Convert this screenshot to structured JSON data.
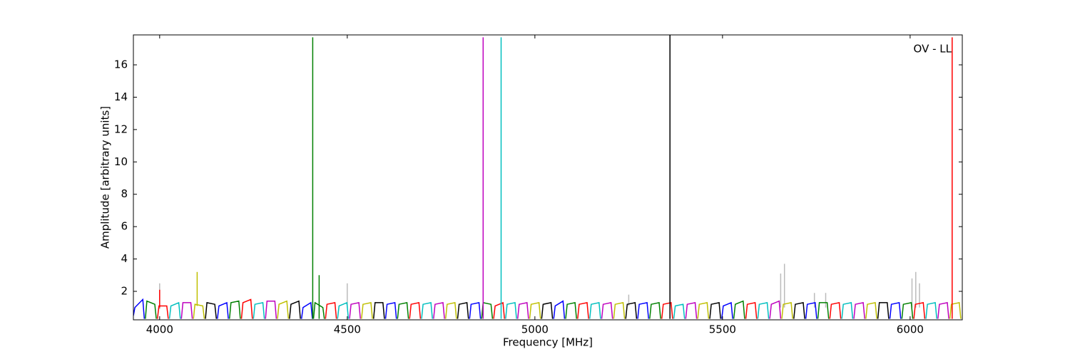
{
  "chart_data": {
    "type": "line",
    "xlabel": "Frequency [MHz]",
    "ylabel": "Amplitude [arbitrary units]",
    "annotation": "OV - LL",
    "xlim": [
      3930,
      6139
    ],
    "ylim": [
      0.24,
      17.85
    ],
    "xticks": [
      4000,
      4500,
      5000,
      5500,
      6000
    ],
    "yticks": [
      2,
      4,
      6,
      8,
      10,
      12,
      14,
      16
    ],
    "series": [
      {
        "color": "#bbbbbb",
        "x": [
          4000,
          4000,
          null,
          4500,
          4500,
          null,
          5250,
          5250,
          null,
          5655,
          5655,
          null,
          5665,
          5665,
          null,
          5745,
          5745,
          null,
          5775,
          5775,
          null,
          6005,
          6005,
          null,
          6015,
          6015,
          null,
          6025,
          6025
        ],
        "values": [
          0.9,
          2.5,
          null,
          1.0,
          2.5,
          null,
          1.1,
          1.8,
          null,
          1.0,
          3.1,
          null,
          1.0,
          3.7,
          null,
          1.0,
          1.9,
          null,
          1.0,
          1.9,
          null,
          1.0,
          2.8,
          null,
          1.0,
          3.2,
          null,
          1.0,
          2.5
        ]
      },
      {
        "color": "#0000ff",
        "x": [
          3930,
          3934,
          3955,
          3959,
          null,
          4154,
          4158,
          4179,
          4183,
          null,
          4378,
          4382,
          4403,
          4407,
          null,
          4602,
          4606,
          4627,
          4631,
          null,
          4826,
          4830,
          4851,
          4855,
          null,
          5050,
          5054,
          5075,
          5079,
          null,
          5274,
          5278,
          5299,
          5303,
          null,
          5498,
          5502,
          5523,
          5527,
          null,
          5722,
          5726,
          5747,
          5751,
          null,
          5946,
          5950,
          5971,
          5975
        ],
        "values": [
          0.5,
          1.0,
          1.5,
          0.3,
          null,
          0.3,
          1.1,
          1.3,
          0.3,
          null,
          0.3,
          1.0,
          1.3,
          0.3,
          null,
          0.3,
          1.2,
          1.3,
          0.3,
          null,
          0.3,
          1.2,
          1.3,
          0.3,
          null,
          0.3,
          1.1,
          1.4,
          0.3,
          null,
          0.3,
          1.2,
          1.3,
          0.3,
          null,
          0.3,
          1.1,
          1.3,
          0.3,
          null,
          0.3,
          1.2,
          1.3,
          0.3,
          null,
          0.3,
          1.2,
          1.3,
          0.3
        ]
      },
      {
        "color": "#008000",
        "x": [
          3962,
          3966,
          3987,
          3991,
          null,
          4186,
          4190,
          4211,
          4215,
          null,
          4410,
          4414,
          4435,
          4439,
          null,
          4634,
          4638,
          4659,
          4663,
          null,
          4858,
          4862,
          4883,
          4887,
          null,
          5082,
          5086,
          5107,
          5111,
          null,
          5306,
          5310,
          5331,
          5335,
          null,
          5530,
          5534,
          5555,
          5559,
          null,
          5754,
          5758,
          5779,
          5783,
          null,
          5978,
          5982,
          6003,
          6007
        ],
        "values": [
          0.3,
          1.4,
          1.2,
          0.3,
          null,
          0.3,
          1.3,
          1.4,
          0.3,
          null,
          0.3,
          1.3,
          1.0,
          0.3,
          null,
          0.3,
          1.2,
          1.3,
          0.3,
          null,
          0.3,
          1.3,
          1.2,
          0.3,
          null,
          0.3,
          1.2,
          1.3,
          0.3,
          null,
          0.3,
          1.2,
          1.3,
          0.3,
          null,
          0.3,
          1.2,
          1.4,
          0.3,
          null,
          0.3,
          1.3,
          1.3,
          0.3,
          null,
          0.3,
          1.2,
          1.3,
          0.3
        ]
      },
      {
        "color": "#ff0000",
        "x": [
          3994,
          3998,
          4019,
          4023,
          null,
          4218,
          4222,
          4243,
          4247,
          null,
          4442,
          4446,
          4467,
          4471,
          null,
          4666,
          4670,
          4691,
          4695,
          null,
          4890,
          4894,
          4915,
          4919,
          null,
          5114,
          5118,
          5139,
          5143,
          null,
          5338,
          5342,
          5363,
          5367,
          null,
          5562,
          5566,
          5587,
          5591,
          null,
          5786,
          5790,
          5811,
          5815,
          null,
          6010,
          6014,
          6035,
          6039
        ],
        "values": [
          0.3,
          1.1,
          1.1,
          0.3,
          null,
          0.3,
          1.3,
          1.5,
          0.3,
          null,
          0.3,
          1.2,
          1.3,
          0.3,
          null,
          0.3,
          1.2,
          1.3,
          0.3,
          null,
          0.3,
          1.1,
          1.3,
          0.3,
          null,
          0.3,
          1.2,
          1.3,
          0.3,
          null,
          0.3,
          1.2,
          1.3,
          0.3,
          null,
          0.3,
          1.2,
          1.3,
          0.3,
          null,
          0.3,
          1.2,
          1.3,
          0.3,
          null,
          0.3,
          1.2,
          1.3,
          0.3
        ]
      },
      {
        "color": "#00bfbf",
        "x": [
          4026,
          4030,
          4051,
          4055,
          null,
          4250,
          4254,
          4275,
          4279,
          null,
          4474,
          4478,
          4499,
          4503,
          null,
          4698,
          4702,
          4723,
          4727,
          null,
          4922,
          4926,
          4947,
          4951,
          null,
          5146,
          5150,
          5171,
          5175,
          null,
          5370,
          5374,
          5395,
          5399,
          null,
          5594,
          5598,
          5619,
          5623,
          null,
          5818,
          5822,
          5843,
          5847,
          null,
          6042,
          6046,
          6067,
          6071
        ],
        "values": [
          0.3,
          1.1,
          1.3,
          0.3,
          null,
          0.3,
          1.2,
          1.3,
          0.3,
          null,
          0.3,
          1.1,
          1.3,
          0.3,
          null,
          0.3,
          1.2,
          1.3,
          0.3,
          null,
          0.3,
          1.2,
          1.3,
          0.3,
          null,
          0.3,
          1.2,
          1.3,
          0.3,
          null,
          0.3,
          1.1,
          1.2,
          0.3,
          null,
          0.3,
          1.2,
          1.3,
          0.3,
          null,
          0.3,
          1.2,
          1.3,
          0.3,
          null,
          0.3,
          1.2,
          1.3,
          0.3
        ]
      },
      {
        "color": "#bf00bf",
        "x": [
          4058,
          4062,
          4083,
          4087,
          null,
          4282,
          4286,
          4307,
          4311,
          null,
          4506,
          4510,
          4531,
          4535,
          null,
          4730,
          4734,
          4755,
          4759,
          null,
          4954,
          4958,
          4979,
          4983,
          null,
          5178,
          5182,
          5203,
          5207,
          null,
          5402,
          5406,
          5427,
          5431,
          null,
          5626,
          5630,
          5651,
          5655,
          null,
          5850,
          5854,
          5875,
          5879,
          null,
          6074,
          6078,
          6099,
          6103
        ],
        "values": [
          0.3,
          1.3,
          1.3,
          0.3,
          null,
          0.3,
          1.4,
          1.4,
          0.3,
          null,
          0.3,
          1.2,
          1.3,
          0.3,
          null,
          0.3,
          1.2,
          1.3,
          0.3,
          null,
          0.3,
          1.2,
          1.3,
          0.3,
          null,
          0.3,
          1.2,
          1.3,
          0.3,
          null,
          0.3,
          1.2,
          1.3,
          0.3,
          null,
          0.3,
          1.2,
          1.4,
          0.3,
          null,
          0.3,
          1.2,
          1.3,
          0.3,
          null,
          0.3,
          1.2,
          1.3,
          0.3
        ]
      },
      {
        "color": "#bfbf00",
        "x": [
          4090,
          4094,
          4115,
          4119,
          null,
          4314,
          4318,
          4339,
          4343,
          null,
          4538,
          4542,
          4563,
          4567,
          null,
          4762,
          4766,
          4787,
          4791,
          null,
          4986,
          4990,
          5011,
          5015,
          null,
          5210,
          5214,
          5235,
          5239,
          null,
          5434,
          5438,
          5459,
          5463,
          null,
          5658,
          5662,
          5683,
          5687,
          null,
          5882,
          5886,
          5907,
          5911,
          null,
          6106,
          6110,
          6131,
          6135
        ],
        "values": [
          0.3,
          1.2,
          1.1,
          0.3,
          null,
          0.3,
          1.2,
          1.4,
          0.3,
          null,
          0.3,
          1.2,
          1.3,
          0.3,
          null,
          0.3,
          1.2,
          1.3,
          0.3,
          null,
          0.3,
          1.2,
          1.3,
          0.3,
          null,
          0.3,
          1.2,
          1.3,
          0.3,
          null,
          0.3,
          1.2,
          1.3,
          0.3,
          null,
          0.3,
          1.2,
          1.3,
          0.3,
          null,
          0.3,
          1.2,
          1.3,
          0.3,
          null,
          0.3,
          1.2,
          1.3,
          0.3
        ]
      },
      {
        "color": "#000000",
        "x": [
          4122,
          4126,
          4147,
          4151,
          null,
          4346,
          4350,
          4371,
          4375,
          null,
          4570,
          4574,
          4595,
          4599,
          null,
          4794,
          4798,
          4819,
          4823,
          null,
          5018,
          5022,
          5043,
          5047,
          null,
          5242,
          5246,
          5267,
          5271,
          null,
          5466,
          5470,
          5491,
          5495,
          null,
          5690,
          5694,
          5715,
          5719,
          null,
          5914,
          5918,
          5939,
          5943
        ],
        "values": [
          0.3,
          1.3,
          1.2,
          0.3,
          null,
          0.3,
          1.2,
          1.4,
          0.3,
          null,
          0.3,
          1.3,
          1.3,
          0.3,
          null,
          0.3,
          1.2,
          1.3,
          0.3,
          null,
          0.3,
          1.2,
          1.3,
          0.3,
          null,
          0.3,
          1.2,
          1.3,
          0.3,
          null,
          0.3,
          1.2,
          1.3,
          0.3,
          null,
          0.3,
          1.2,
          1.3,
          0.3,
          null,
          0.3,
          1.3,
          1.3,
          0.3
        ]
      },
      {
        "color": "#ff0000",
        "x": [
          4000,
          4000
        ],
        "values": [
          1.0,
          2.1
        ]
      },
      {
        "color": "#bfbf00",
        "x": [
          4100,
          4100
        ],
        "values": [
          1.1,
          3.2
        ]
      },
      {
        "color": "#008000",
        "x": [
          4408,
          4408
        ],
        "values": [
          0.3,
          17.7
        ]
      },
      {
        "color": "#008000",
        "x": [
          4425,
          4425
        ],
        "values": [
          0.3,
          3.0
        ]
      },
      {
        "color": "#bf00bf",
        "x": [
          4862,
          4862
        ],
        "values": [
          0.3,
          17.7
        ]
      },
      {
        "color": "#00bfbf",
        "x": [
          4910,
          4910
        ],
        "values": [
          0.3,
          17.7
        ]
      },
      {
        "color": "#000000",
        "x": [
          5360,
          5360
        ],
        "values": [
          0.3,
          17.85
        ]
      },
      {
        "color": "#ff0000",
        "x": [
          6112,
          6112
        ],
        "values": [
          0.3,
          17.7
        ]
      }
    ]
  }
}
